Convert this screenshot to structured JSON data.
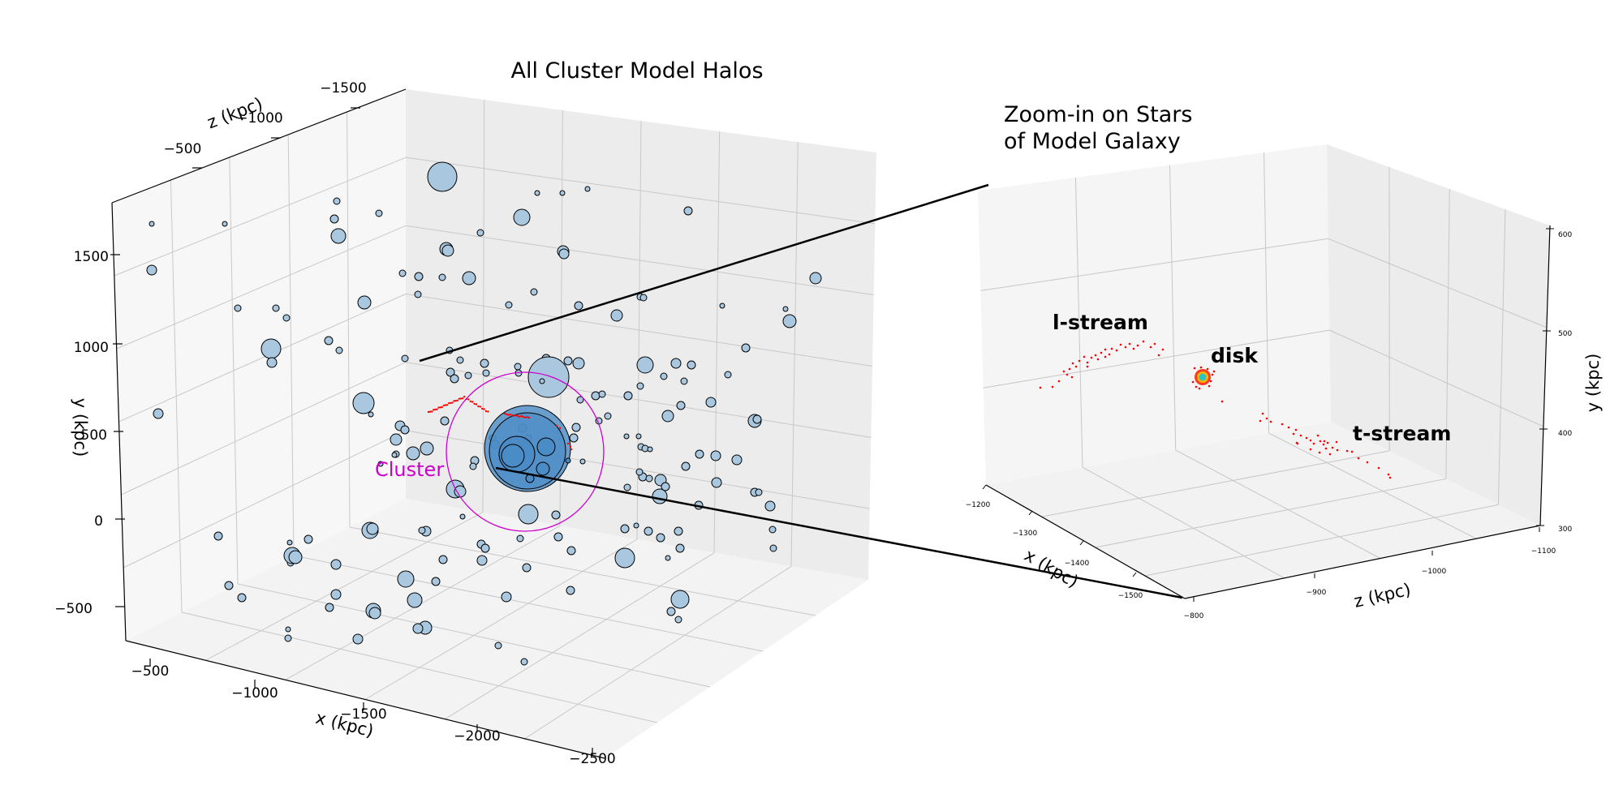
{
  "chart_data": [
    {
      "type": "scatter3d",
      "title": "All Cluster Model Halos",
      "xlabel": "x (kpc)",
      "ylabel": "y (kpc)",
      "zlabel": "z (kpc)",
      "x_ticks": [
        "−500",
        "−1000",
        "−1500",
        "−2000",
        "−2500"
      ],
      "y_ticks": [
        "−500",
        "0",
        "500",
        "1000",
        "1500"
      ],
      "z_ticks": [
        "−500",
        "−1000",
        "−1500"
      ],
      "xlim": [
        -400,
        -2600
      ],
      "ylim": [
        -600,
        1800
      ],
      "zlim": [
        -200,
        -1700
      ],
      "annotation": "Cluster",
      "annotation_color": "#cc00cc",
      "halo_fill": "#a9c8e0",
      "cluster_fill": "#4a8cc6",
      "grid": true,
      "pane_color": "#f2f2f2"
    },
    {
      "type": "scatter3d",
      "title_lines": [
        "Zoom-in on Stars",
        "of Model Galaxy"
      ],
      "xlabel": "x (kpc)",
      "ylabel": "y (kpc)",
      "zlabel": "z (kpc)",
      "x_ticks": [
        "−1200",
        "−1300",
        "−1400",
        "−1500"
      ],
      "y_ticks": [
        "300",
        "400",
        "500",
        "600"
      ],
      "z_ticks": [
        "−800",
        "−900",
        "−1000",
        "−1100"
      ],
      "xlim": [
        -1200,
        -1550
      ],
      "ylim": [
        300,
        600
      ],
      "zlim": [
        -800,
        -1100
      ],
      "labels": [
        "l-stream",
        "disk",
        "t-stream"
      ],
      "star_color": "#ff0000",
      "grid": true,
      "pane_color": "#f4f4f4"
    }
  ]
}
